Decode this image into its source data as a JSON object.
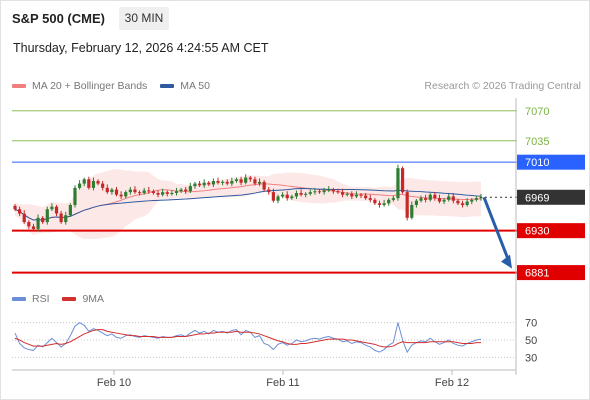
{
  "header": {
    "instrument": "S&P 500 (CME)",
    "interval": "30 MIN",
    "datetime": "Thursday, February 12, 2026 4:24:55 AM CET"
  },
  "legend": {
    "ma20_label": "MA 20 + Bollinger Bands",
    "ma50_label": "MA 50",
    "copyright": "Research © 2026 Trading Central",
    "rsi_label": "RSI",
    "rsi_ma_label": "9MA"
  },
  "colors": {
    "ma20": "#f08080",
    "ma50": "#2f5aa0",
    "bollinger": "#fde4e4",
    "resistance": "#7cb342",
    "pivot": "#2962ff",
    "support": "#e00000",
    "current": "#333333",
    "candle_up": "#2e7d32",
    "candle_down": "#c62828",
    "rsi": "#6b8fd6",
    "rsi_ma": "#d32f2f",
    "arrow": "#2a5da8"
  },
  "chart_data": {
    "type": "candlestick",
    "price_axis": {
      "min": 6870,
      "max": 7085
    },
    "x_tick_labels": [
      "Feb 10",
      "Feb 11",
      "Feb 12"
    ],
    "levels": [
      {
        "value": 7070,
        "label": "7070",
        "kind": "resistance"
      },
      {
        "value": 7035,
        "label": "7035",
        "kind": "resistance"
      },
      {
        "value": 7010,
        "label": "7010",
        "kind": "pivot"
      },
      {
        "value": 6969,
        "label": "6969",
        "kind": "current"
      },
      {
        "value": 6930,
        "label": "6930",
        "kind": "support"
      },
      {
        "value": 6881,
        "label": "6881",
        "kind": "support"
      }
    ],
    "forecast_arrow": {
      "from": 6969,
      "to": 6881
    },
    "close_series": [
      6955,
      6950,
      6940,
      6935,
      6932,
      6945,
      6940,
      6955,
      6958,
      6950,
      6940,
      6948,
      6960,
      6980,
      6985,
      6990,
      6980,
      6988,
      6985,
      6980,
      6975,
      6978,
      6972,
      6970,
      6975,
      6978,
      6975,
      6974,
      6977,
      6976,
      6974,
      6972,
      6975,
      6973,
      6974,
      6976,
      6978,
      6976,
      6982,
      6985,
      6983,
      6986,
      6984,
      6988,
      6986,
      6987,
      6985,
      6988,
      6990,
      6986,
      6992,
      6990,
      6985,
      6987,
      6978,
      6975,
      6965,
      6970,
      6972,
      6968,
      6970,
      6974,
      6972,
      6973,
      6975,
      6976,
      6975,
      6977,
      6978,
      6976,
      6975,
      6972,
      6973,
      6970,
      6972,
      6971,
      6968,
      6966,
      6962,
      6960,
      6962,
      6966,
      6968,
      7003,
      6975,
      6945,
      6960,
      6965,
      6968,
      6966,
      6972,
      6968,
      6964,
      6966,
      6970,
      6965,
      6962,
      6960,
      6964,
      6966,
      6968,
      6969
    ],
    "rsi_axis": {
      "min": 20,
      "max": 80,
      "ticks": [
        70,
        50,
        30
      ]
    },
    "rsi_series": [
      58,
      46,
      41,
      39,
      38,
      44,
      42,
      47,
      52,
      47,
      42,
      46,
      55,
      66,
      70,
      67,
      60,
      63,
      61,
      58,
      55,
      57,
      53,
      52,
      55,
      56,
      54,
      53,
      55,
      54,
      53,
      52,
      54,
      53,
      53,
      55,
      56,
      54,
      58,
      61,
      58,
      60,
      57,
      61,
      59,
      60,
      58,
      61,
      62,
      56,
      61,
      59,
      53,
      55,
      46,
      44,
      39,
      45,
      47,
      44,
      46,
      50,
      48,
      49,
      51,
      52,
      51,
      53,
      54,
      52,
      51,
      48,
      49,
      46,
      48,
      47,
      44,
      42,
      38,
      36,
      39,
      44,
      47,
      70,
      50,
      36,
      44,
      47,
      49,
      48,
      52,
      48,
      45,
      47,
      50,
      46,
      44,
      43,
      46,
      48,
      50,
      51
    ],
    "rsi_ma_series": [
      52,
      50,
      47,
      45,
      43,
      43,
      43,
      44,
      45,
      46,
      45,
      46,
      48,
      51,
      54,
      57,
      59,
      61,
      62,
      62,
      60,
      59,
      58,
      57,
      56,
      55,
      55,
      54,
      54,
      54,
      54,
      53,
      53,
      53,
      53,
      54,
      54,
      54,
      55,
      56,
      57,
      57,
      58,
      58,
      59,
      59,
      59,
      59,
      60,
      59,
      59,
      59,
      58,
      57,
      55,
      53,
      51,
      49,
      48,
      46,
      45,
      45,
      46,
      46,
      47,
      48,
      49,
      50,
      51,
      51,
      51,
      51,
      50,
      50,
      49,
      48,
      47,
      46,
      45,
      43,
      42,
      42,
      43,
      46,
      48,
      47,
      47,
      47,
      47,
      47,
      48,
      48,
      48,
      48,
      48,
      48,
      47,
      46,
      46,
      46,
      47,
      47
    ]
  }
}
